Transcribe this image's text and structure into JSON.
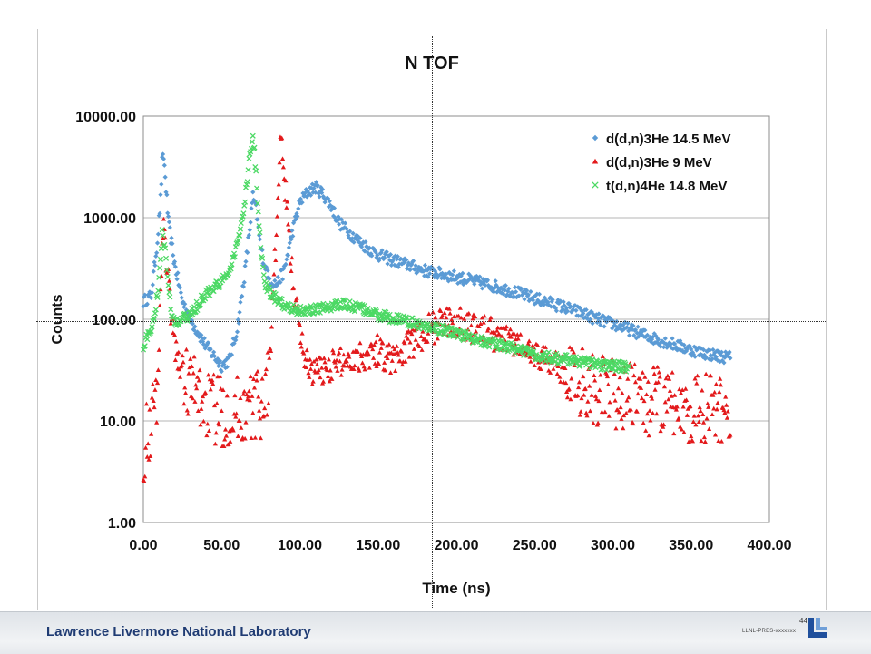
{
  "footer": {
    "lab_name": "Lawrence Livermore National Laboratory",
    "page_number": "44",
    "doc_code": "LLNL-PRES-xxxxxxx"
  },
  "chart_data": {
    "type": "scatter",
    "title": "N TOF",
    "xlabel": "Time (ns)",
    "ylabel": "Counts",
    "xlim": [
      0,
      400
    ],
    "ylim": [
      1,
      10000
    ],
    "yscale": "log",
    "grid": "horizontal",
    "legend_position": "top-right",
    "xticks": [
      "0.00",
      "50.00",
      "100.00",
      "150.00",
      "200.00",
      "250.00",
      "300.00",
      "350.00",
      "400.00"
    ],
    "yticks": [
      "1.00",
      "10.00",
      "100.00",
      "1000.00",
      "10000.00"
    ],
    "series": [
      {
        "name": "d(d,n)3He 14.5 MeV",
        "color": "#5b9bd5",
        "marker": "diamond",
        "x": [
          0,
          5,
          9,
          11,
          12,
          13,
          14,
          16,
          20,
          25,
          30,
          40,
          50,
          55,
          60,
          65,
          68,
          70,
          72,
          75,
          80,
          85,
          90,
          95,
          100,
          105,
          110,
          115,
          120,
          125,
          130,
          140,
          150,
          160,
          170,
          180,
          190,
          200,
          210,
          220,
          230,
          240,
          250,
          260,
          270,
          280,
          290,
          300,
          310,
          320,
          330,
          340,
          350,
          360,
          370,
          375
        ],
        "y": [
          150,
          170,
          600,
          1500,
          3500,
          4000,
          2500,
          900,
          350,
          150,
          100,
          55,
          35,
          40,
          80,
          300,
          800,
          1600,
          1200,
          500,
          250,
          220,
          300,
          700,
          1400,
          1800,
          2000,
          1700,
          1300,
          900,
          750,
          550,
          430,
          380,
          340,
          300,
          280,
          260,
          240,
          220,
          200,
          180,
          160,
          145,
          130,
          115,
          100,
          90,
          80,
          70,
          62,
          56,
          50,
          46,
          43,
          42
        ]
      },
      {
        "name": "d(d,n)3He 9 MeV",
        "color": "#e31a1c",
        "marker": "triangle",
        "x": [
          0,
          3,
          5,
          8,
          10,
          12,
          13,
          15,
          18,
          22,
          28,
          35,
          45,
          55,
          65,
          75,
          80,
          85,
          87,
          88,
          90,
          95,
          100,
          105,
          110,
          120,
          130,
          140,
          150,
          160,
          170,
          180,
          190,
          200,
          210,
          220,
          230,
          240,
          250,
          260,
          270,
          280,
          290,
          300,
          320,
          340,
          360,
          375
        ],
        "y": [
          5,
          8,
          10,
          15,
          60,
          600,
          800,
          350,
          100,
          40,
          25,
          18,
          13,
          12,
          13,
          15,
          25,
          700,
          3500,
          5500,
          2500,
          300,
          70,
          35,
          30,
          35,
          40,
          45,
          50,
          40,
          55,
          75,
          90,
          95,
          85,
          75,
          65,
          55,
          45,
          40,
          30,
          25,
          20,
          18,
          16,
          14,
          13,
          12
        ]
      },
      {
        "name": "t(d,n)4He 14.8 MeV",
        "color": "#4cd964",
        "marker": "x",
        "x": [
          0,
          5,
          8,
          10,
          12,
          14,
          16,
          18,
          20,
          25,
          30,
          35,
          40,
          50,
          55,
          60,
          63,
          65,
          67,
          69,
          70,
          71,
          73,
          75,
          78,
          82,
          90,
          100,
          110,
          120,
          130,
          140,
          150,
          160,
          170,
          180,
          190,
          200,
          210,
          220,
          230,
          240,
          250,
          260,
          270,
          280,
          290,
          300,
          310
        ],
        "y": [
          55,
          80,
          130,
          250,
          700,
          450,
          200,
          120,
          90,
          100,
          110,
          140,
          180,
          230,
          300,
          550,
          900,
          1500,
          3000,
          5000,
          5800,
          4500,
          1500,
          500,
          220,
          170,
          140,
          120,
          125,
          135,
          140,
          125,
          110,
          100,
          95,
          85,
          80,
          72,
          66,
          60,
          55,
          50,
          45,
          42,
          40,
          38,
          36,
          35,
          34
        ]
      }
    ]
  }
}
